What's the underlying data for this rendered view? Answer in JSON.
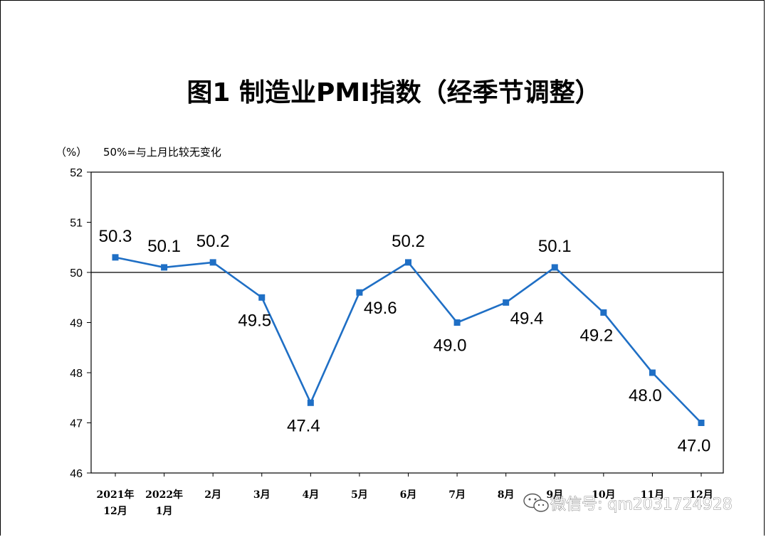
{
  "chart_data": {
    "type": "line",
    "title": "图1 制造业PMI指数（经季节调整）",
    "unit_label": "（%）",
    "reference_note": "50%=与上月比较无变化",
    "categories": [
      [
        "2021年",
        "12月"
      ],
      [
        "2022年",
        "1月"
      ],
      [
        "2月"
      ],
      [
        "3月"
      ],
      [
        "4月"
      ],
      [
        "5月"
      ],
      [
        "6月"
      ],
      [
        "7月"
      ],
      [
        "8月"
      ],
      [
        "9月"
      ],
      [
        "10月"
      ],
      [
        "11月"
      ],
      [
        "12月"
      ]
    ],
    "values": [
      50.3,
      50.1,
      50.2,
      49.5,
      47.4,
      49.6,
      50.2,
      49.0,
      49.4,
      50.1,
      49.2,
      48.0,
      47.0
    ],
    "data_labels": [
      "50.3",
      "50.1",
      "50.2",
      "49.5",
      "47.4",
      "49.6",
      "50.2",
      "49.0",
      "49.4",
      "50.1",
      "49.2",
      "48.0",
      "47.0"
    ],
    "label_position": [
      "above",
      "above",
      "above",
      "below",
      "below",
      "right",
      "above",
      "below",
      "right",
      "above",
      "below",
      "below",
      "below"
    ],
    "ylim": [
      46,
      52
    ],
    "yticks": [
      46,
      47,
      48,
      49,
      50,
      51,
      52
    ],
    "reference_line": 50,
    "grid": false,
    "line_color": "#1f6fc5"
  },
  "watermark": {
    "icon": "wechat-icon",
    "text": "微信号: qm2031724928"
  }
}
